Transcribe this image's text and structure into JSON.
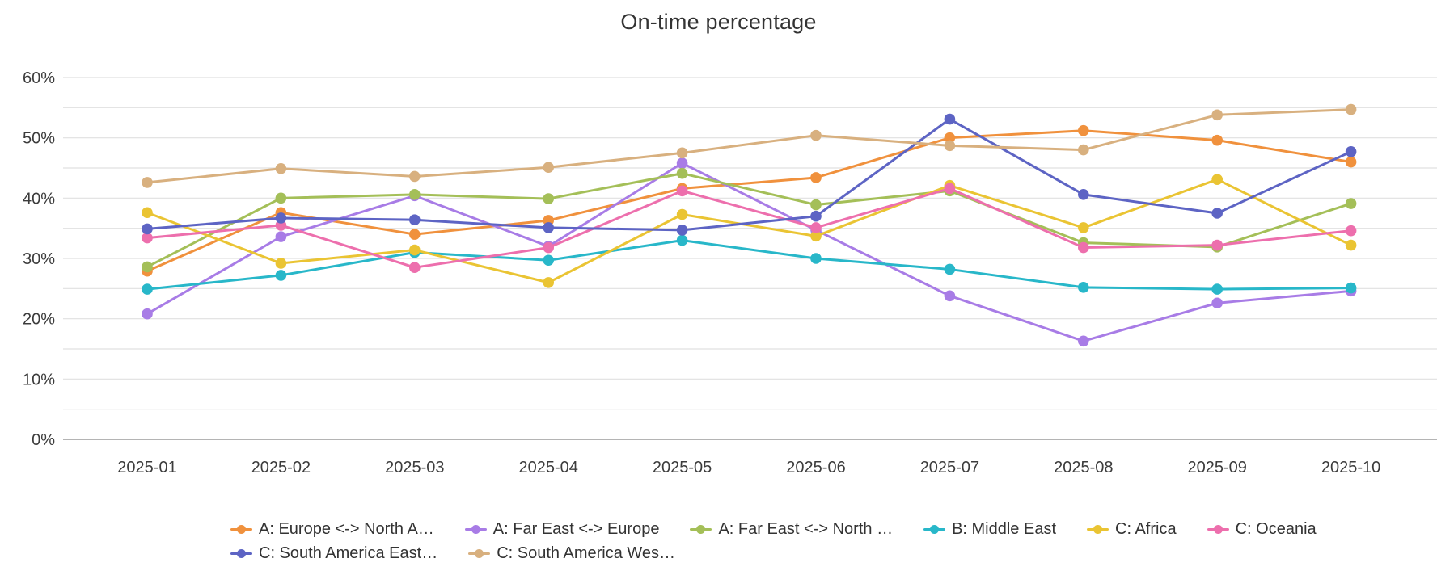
{
  "chart_data": {
    "type": "line",
    "title": "On-time percentage",
    "xlabel": "",
    "ylabel": "",
    "ylim": [
      0,
      60
    ],
    "ytick_step": 10,
    "minor_gridline_step": 5,
    "ytick_suffix": "%",
    "grid": true,
    "legend": {
      "position": "bottom",
      "items_per_row": [
        6,
        2
      ]
    },
    "categories": [
      "2025-01",
      "2025-02",
      "2025-03",
      "2025-04",
      "2025-05",
      "2025-06",
      "2025-07",
      "2025-08",
      "2025-09",
      "2025-10"
    ],
    "series": [
      {
        "name": "A: Europe <-> North A…",
        "color": "#f0913d",
        "values": [
          27.9,
          37.6,
          34.0,
          36.3,
          41.6,
          43.4,
          50.0,
          51.2,
          49.6,
          46.0
        ]
      },
      {
        "name": "A: Far East <-> Europe",
        "color": "#a87ce6",
        "values": [
          20.8,
          33.6,
          40.4,
          32.0,
          45.8,
          34.7,
          23.8,
          16.3,
          22.6,
          24.6
        ]
      },
      {
        "name": "A: Far East <-> North …",
        "color": "#a4bf58",
        "values": [
          28.6,
          40.0,
          40.6,
          39.9,
          44.1,
          38.9,
          41.2,
          32.6,
          31.9,
          39.1
        ]
      },
      {
        "name": "B: Middle East",
        "color": "#28b7c9",
        "values": [
          24.9,
          27.2,
          31.0,
          29.7,
          33.0,
          30.0,
          28.2,
          25.2,
          24.9,
          25.1
        ]
      },
      {
        "name": "C: Africa",
        "color": "#eac433",
        "values": [
          37.6,
          29.2,
          31.4,
          26.0,
          37.3,
          33.7,
          42.1,
          35.1,
          43.1,
          32.2
        ]
      },
      {
        "name": "C: Oceania",
        "color": "#ed6fad",
        "values": [
          33.4,
          35.5,
          28.5,
          31.8,
          41.2,
          35.1,
          41.6,
          31.8,
          32.2,
          34.6
        ]
      },
      {
        "name": "C: South America East…",
        "color": "#5d64c4",
        "values": [
          34.9,
          36.7,
          36.4,
          35.1,
          34.7,
          37.0,
          53.1,
          40.6,
          37.5,
          47.7
        ]
      },
      {
        "name": "C: South America Wes…",
        "color": "#d8b07f",
        "values": [
          42.6,
          44.9,
          43.6,
          45.1,
          47.5,
          50.4,
          48.7,
          48.0,
          53.8,
          54.7
        ]
      }
    ],
    "colors": {
      "gridline": "#e0e0e0",
      "axis_line": "#9b9b9b",
      "text": "#3c3c3c",
      "background": "#ffffff"
    }
  }
}
